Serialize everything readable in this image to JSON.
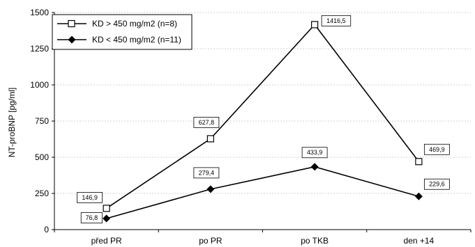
{
  "chart_data": {
    "type": "line",
    "title": "",
    "xlabel": "",
    "ylabel": "NT-proBNP [pg/ml]",
    "categories": [
      "před PR",
      "po PR",
      "po TKB",
      "den +14"
    ],
    "ylim": [
      0,
      1500
    ],
    "yticks": [
      0,
      250,
      500,
      750,
      1000,
      1250,
      1500
    ],
    "grid": true,
    "legend_position": "top-left",
    "series": [
      {
        "name": "KD > 450 mg/m2 (n=8)",
        "marker": "open-square",
        "values": [
          146.9,
          627.8,
          1416.5,
          469.9
        ],
        "value_labels": [
          "146,9",
          "627,8",
          "1416,5",
          "469,9"
        ]
      },
      {
        "name": "KD < 450 mg/m2 (n=11)",
        "marker": "filled-diamond",
        "values": [
          76.8,
          279.4,
          433.9,
          229.6
        ],
        "value_labels": [
          "76,8",
          "279,4",
          "433,9",
          "229,6"
        ]
      }
    ]
  }
}
